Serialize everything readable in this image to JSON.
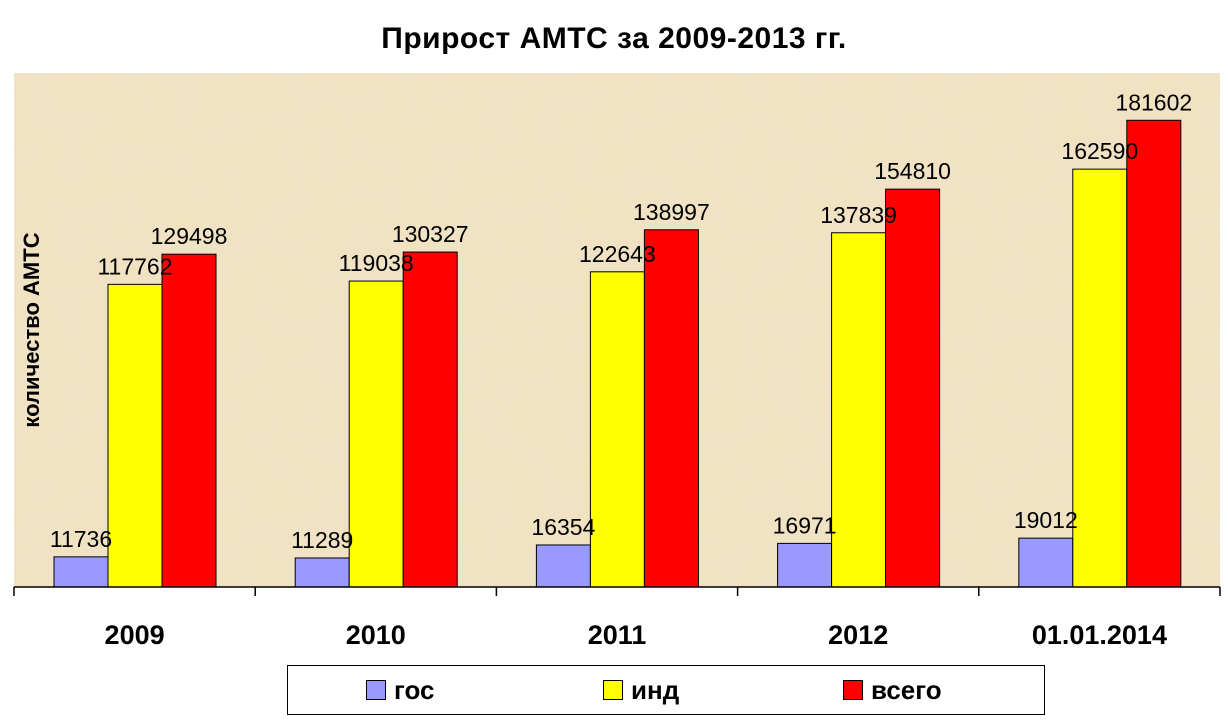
{
  "chart_data": {
    "type": "bar",
    "title": "Прирост АМТС за 2009-2013 гг.",
    "ylabel": "количество АМТС",
    "xlabel": "",
    "categories": [
      "2009",
      "2010",
      "2011",
      "2012",
      "01.01.2014"
    ],
    "series": [
      {
        "name": "гос",
        "color": "#9999ff",
        "values": [
          11736,
          11289,
          16354,
          16971,
          19012
        ]
      },
      {
        "name": "инд",
        "color": "#ffff00",
        "values": [
          117762,
          119038,
          122643,
          137839,
          162590
        ]
      },
      {
        "name": "всего",
        "color": "#ff0000",
        "values": [
          129498,
          130327,
          138997,
          154810,
          181602
        ]
      }
    ],
    "ylim": [
      0,
      200000
    ],
    "grid": false,
    "legend_position": "bottom",
    "data_labels": true,
    "plot_background": "parchment"
  }
}
